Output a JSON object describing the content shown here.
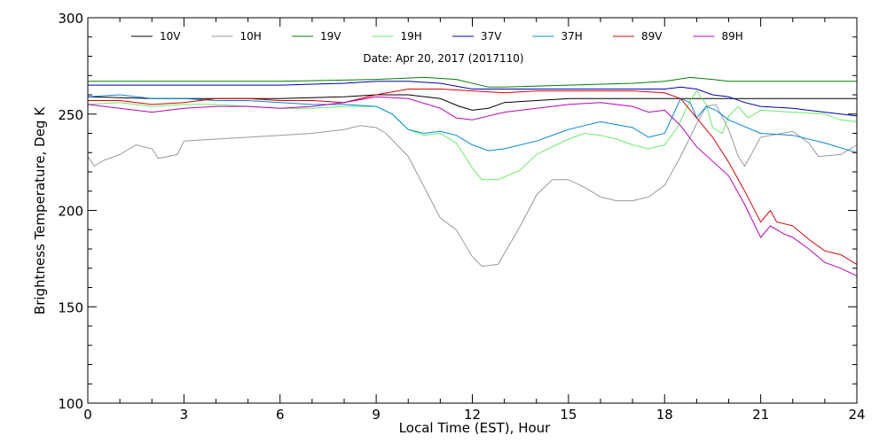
{
  "chart_data": {
    "type": "line",
    "title": "Date: Apr 20, 2017 (2017110)",
    "xlabel": "Local Time (EST), Hour",
    "ylabel": "Brightness Temperature, Deg K",
    "xlim": [
      0,
      24
    ],
    "ylim": [
      100,
      300
    ],
    "xticks": [
      0,
      3,
      6,
      9,
      12,
      15,
      18,
      21,
      24
    ],
    "yticks": [
      100,
      150,
      200,
      250,
      300
    ],
    "grid": false,
    "legend_position": "top",
    "series": [
      {
        "name": "10V",
        "color": "#000000",
        "points": [
          [
            0,
            259
          ],
          [
            2,
            258
          ],
          [
            4,
            258
          ],
          [
            6,
            258
          ],
          [
            8,
            259
          ],
          [
            9,
            260
          ],
          [
            10,
            260
          ],
          [
            11,
            258
          ],
          [
            11.6,
            254
          ],
          [
            12,
            252
          ],
          [
            12.5,
            253
          ],
          [
            13,
            256
          ],
          [
            14,
            257
          ],
          [
            15,
            258
          ],
          [
            16,
            258
          ],
          [
            17,
            258
          ],
          [
            18,
            258
          ],
          [
            19,
            258
          ],
          [
            20,
            258
          ],
          [
            21,
            258
          ],
          [
            22,
            258
          ],
          [
            23,
            258
          ],
          [
            24,
            258
          ]
        ]
      },
      {
        "name": "10H",
        "color": "#999999",
        "points": [
          [
            0,
            228
          ],
          [
            0.2,
            223
          ],
          [
            0.5,
            226
          ],
          [
            1,
            229
          ],
          [
            1.5,
            234
          ],
          [
            2,
            232
          ],
          [
            2.2,
            227
          ],
          [
            2.8,
            229
          ],
          [
            3,
            236
          ],
          [
            4,
            237
          ],
          [
            5,
            238
          ],
          [
            6,
            239
          ],
          [
            7,
            240
          ],
          [
            8,
            242
          ],
          [
            8.5,
            244
          ],
          [
            9,
            243
          ],
          [
            9.3,
            240
          ],
          [
            10,
            228
          ],
          [
            10.5,
            212
          ],
          [
            11,
            196
          ],
          [
            11.5,
            190
          ],
          [
            12,
            176
          ],
          [
            12.3,
            171
          ],
          [
            12.8,
            172
          ],
          [
            13.5,
            192
          ],
          [
            14,
            208
          ],
          [
            14.5,
            216
          ],
          [
            15,
            216
          ],
          [
            15.5,
            212
          ],
          [
            16,
            207
          ],
          [
            16.5,
            205
          ],
          [
            17,
            205
          ],
          [
            17.5,
            207
          ],
          [
            18,
            213
          ],
          [
            18.5,
            228
          ],
          [
            19,
            245
          ],
          [
            19.3,
            254
          ],
          [
            19.6,
            255
          ],
          [
            20,
            242
          ],
          [
            20.3,
            228
          ],
          [
            20.5,
            223
          ],
          [
            21,
            238
          ],
          [
            22,
            241
          ],
          [
            22.5,
            235
          ],
          [
            22.8,
            228
          ],
          [
            23.5,
            229
          ],
          [
            24,
            234
          ]
        ]
      },
      {
        "name": "19V",
        "color": "#008000",
        "points": [
          [
            0,
            267
          ],
          [
            3,
            267
          ],
          [
            6,
            267
          ],
          [
            9,
            268
          ],
          [
            10.5,
            269
          ],
          [
            11.5,
            268
          ],
          [
            12.5,
            264
          ],
          [
            13,
            264
          ],
          [
            15,
            265
          ],
          [
            17,
            266
          ],
          [
            18,
            267
          ],
          [
            18.8,
            269
          ],
          [
            19.5,
            268
          ],
          [
            20,
            267
          ],
          [
            22,
            267
          ],
          [
            24,
            267
          ]
        ]
      },
      {
        "name": "19H",
        "color": "#66ee66",
        "points": [
          [
            0,
            255
          ],
          [
            1,
            256
          ],
          [
            2,
            254
          ],
          [
            3,
            255
          ],
          [
            4,
            255
          ],
          [
            5,
            254
          ],
          [
            6,
            253
          ],
          [
            7,
            253
          ],
          [
            8,
            254
          ],
          [
            9,
            254
          ],
          [
            9.5,
            250
          ],
          [
            10,
            242
          ],
          [
            10.5,
            239
          ],
          [
            11,
            240
          ],
          [
            11.5,
            235
          ],
          [
            12,
            222
          ],
          [
            12.3,
            216
          ],
          [
            12.8,
            216
          ],
          [
            13.5,
            221
          ],
          [
            14,
            229
          ],
          [
            15,
            237
          ],
          [
            15.5,
            240
          ],
          [
            16,
            239
          ],
          [
            16.5,
            237
          ],
          [
            17,
            234
          ],
          [
            17.5,
            232
          ],
          [
            18,
            234
          ],
          [
            18.4,
            243
          ],
          [
            18.8,
            257
          ],
          [
            19,
            262
          ],
          [
            19.3,
            255
          ],
          [
            19.5,
            243
          ],
          [
            19.8,
            240
          ],
          [
            20,
            249
          ],
          [
            20.3,
            254
          ],
          [
            20.6,
            248
          ],
          [
            21,
            252
          ],
          [
            22,
            251
          ],
          [
            23,
            250
          ],
          [
            23.5,
            247
          ],
          [
            24,
            246
          ]
        ]
      },
      {
        "name": "37V",
        "color": "#0000aa",
        "points": [
          [
            0,
            265
          ],
          [
            2,
            265
          ],
          [
            4,
            265
          ],
          [
            6,
            265
          ],
          [
            8,
            266
          ],
          [
            9,
            267
          ],
          [
            10,
            267
          ],
          [
            11,
            266
          ],
          [
            12,
            263
          ],
          [
            13,
            263
          ],
          [
            15,
            263
          ],
          [
            17,
            263
          ],
          [
            18,
            263
          ],
          [
            18.5,
            264
          ],
          [
            19,
            263
          ],
          [
            19.5,
            260
          ],
          [
            20,
            259
          ],
          [
            20.5,
            256
          ],
          [
            21,
            254
          ],
          [
            22,
            253
          ],
          [
            23,
            251
          ],
          [
            24,
            249
          ]
        ]
      },
      {
        "name": "37H",
        "color": "#0088dd",
        "points": [
          [
            0,
            259
          ],
          [
            1,
            260
          ],
          [
            2,
            258
          ],
          [
            3,
            258
          ],
          [
            4,
            257
          ],
          [
            5,
            257
          ],
          [
            6,
            256
          ],
          [
            7,
            255
          ],
          [
            8,
            255
          ],
          [
            9,
            254
          ],
          [
            9.5,
            250
          ],
          [
            10,
            242
          ],
          [
            10.5,
            240
          ],
          [
            11,
            241
          ],
          [
            11.5,
            239
          ],
          [
            12,
            234
          ],
          [
            12.5,
            231
          ],
          [
            13,
            232
          ],
          [
            14,
            236
          ],
          [
            15,
            242
          ],
          [
            16,
            246
          ],
          [
            17,
            243
          ],
          [
            17.5,
            238
          ],
          [
            18,
            240
          ],
          [
            18.5,
            258
          ],
          [
            18.8,
            256
          ],
          [
            19,
            248
          ],
          [
            19.3,
            254
          ],
          [
            19.6,
            252
          ],
          [
            20,
            247
          ],
          [
            21,
            240
          ],
          [
            22,
            239
          ],
          [
            23,
            235
          ],
          [
            24,
            230
          ]
        ]
      },
      {
        "name": "89V",
        "color": "#dd0000",
        "points": [
          [
            0,
            257
          ],
          [
            1,
            257
          ],
          [
            2,
            255
          ],
          [
            3,
            256
          ],
          [
            4,
            258
          ],
          [
            5,
            258
          ],
          [
            6,
            257
          ],
          [
            7,
            257
          ],
          [
            8,
            256
          ],
          [
            9,
            260
          ],
          [
            10,
            263
          ],
          [
            11,
            263
          ],
          [
            12,
            262
          ],
          [
            13,
            261
          ],
          [
            14,
            262
          ],
          [
            15,
            262
          ],
          [
            16,
            262
          ],
          [
            17,
            262
          ],
          [
            18,
            261
          ],
          [
            18.5,
            258
          ],
          [
            19,
            248
          ],
          [
            19.5,
            238
          ],
          [
            20,
            225
          ],
          [
            20.5,
            210
          ],
          [
            21,
            194
          ],
          [
            21.3,
            200
          ],
          [
            21.5,
            194
          ],
          [
            22,
            192
          ],
          [
            22.5,
            185
          ],
          [
            23,
            179
          ],
          [
            23.5,
            177
          ],
          [
            24,
            172
          ]
        ]
      },
      {
        "name": "89H",
        "color": "#bb00bb",
        "points": [
          [
            0,
            255
          ],
          [
            1,
            253
          ],
          [
            2,
            251
          ],
          [
            3,
            253
          ],
          [
            4,
            254
          ],
          [
            5,
            254
          ],
          [
            6,
            253
          ],
          [
            7,
            254
          ],
          [
            8,
            256
          ],
          [
            9,
            259
          ],
          [
            10,
            258
          ],
          [
            11,
            253
          ],
          [
            11.5,
            248
          ],
          [
            12,
            247
          ],
          [
            13,
            251
          ],
          [
            14,
            253
          ],
          [
            15,
            255
          ],
          [
            16,
            256
          ],
          [
            17,
            254
          ],
          [
            17.5,
            251
          ],
          [
            18,
            252
          ],
          [
            18.5,
            244
          ],
          [
            19,
            233
          ],
          [
            20,
            218
          ],
          [
            20.5,
            203
          ],
          [
            21,
            186
          ],
          [
            21.3,
            192
          ],
          [
            21.7,
            188
          ],
          [
            22,
            186
          ],
          [
            22.5,
            180
          ],
          [
            23,
            173
          ],
          [
            23.5,
            170
          ],
          [
            24,
            166
          ]
        ]
      }
    ]
  }
}
